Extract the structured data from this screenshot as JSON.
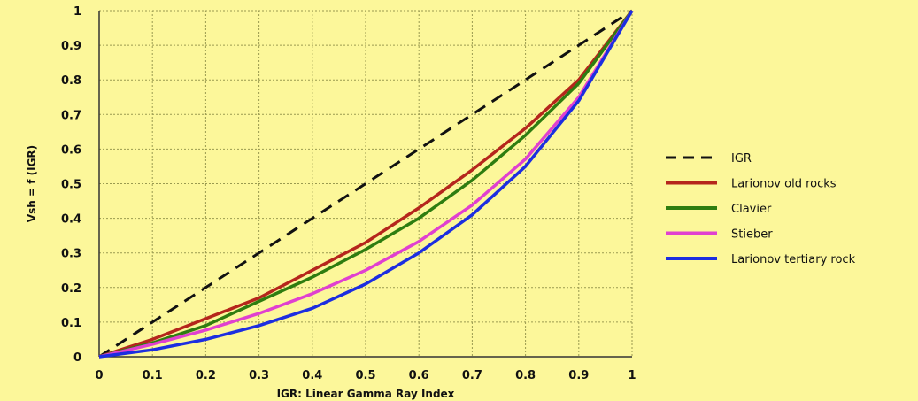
{
  "chart_data": {
    "type": "line",
    "title": "",
    "xlabel": "IGR: Linear Gamma Ray Index",
    "ylabel": "Vsh = f (IGR)",
    "xlim": [
      0,
      1
    ],
    "ylim": [
      0,
      1
    ],
    "xticks": [
      "0",
      "0.1",
      "0.2",
      "0.3",
      "0.4",
      "0.5",
      "0.6",
      "0.7",
      "0.8",
      "0.9",
      "1"
    ],
    "yticks": [
      "0",
      "0.1",
      "0.2",
      "0.3",
      "0.4",
      "0.5",
      "0.6",
      "0.7",
      "0.8",
      "0.9",
      "1"
    ],
    "grid": true,
    "legend_position": "right",
    "x": [
      0,
      0.1,
      0.2,
      0.3,
      0.4,
      0.5,
      0.6,
      0.7,
      0.8,
      0.9,
      1.0
    ],
    "series": [
      {
        "name": "IGR",
        "color": "#111111",
        "dash": true,
        "values": [
          0,
          0.1,
          0.2,
          0.3,
          0.4,
          0.5,
          0.6,
          0.7,
          0.8,
          0.9,
          1.0
        ]
      },
      {
        "name": "Larionov old rocks",
        "color": "#b5261c",
        "dash": false,
        "values": [
          0,
          0.05,
          0.11,
          0.17,
          0.25,
          0.33,
          0.43,
          0.54,
          0.66,
          0.8,
          1.0
        ]
      },
      {
        "name": "Clavier",
        "color": "#2e7d10",
        "dash": false,
        "values": [
          0,
          0.04,
          0.09,
          0.16,
          0.23,
          0.31,
          0.4,
          0.51,
          0.64,
          0.79,
          1.0
        ]
      },
      {
        "name": "Stieber",
        "color": "#e040d0",
        "dash": false,
        "values": [
          0,
          0.036,
          0.077,
          0.125,
          0.182,
          0.25,
          0.333,
          0.438,
          0.571,
          0.75,
          1.0
        ]
      },
      {
        "name": "Larionov tertiary rock",
        "color": "#1c2ee0",
        "dash": false,
        "values": [
          0,
          0.02,
          0.05,
          0.09,
          0.14,
          0.21,
          0.3,
          0.41,
          0.55,
          0.74,
          1.0
        ]
      }
    ]
  },
  "colors": {
    "background": "#fcf79a",
    "grid": "#9a9a50"
  }
}
